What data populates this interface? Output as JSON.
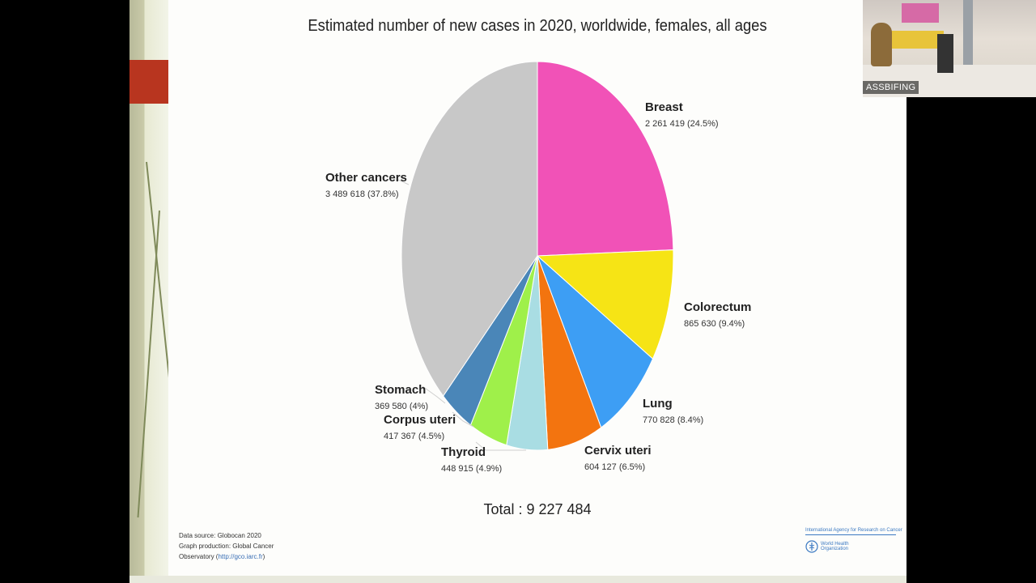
{
  "chart_data": {
    "type": "pie",
    "title": "Estimated number of new cases in 2020, worldwide, females, all ages",
    "total_label": "Total : 9 227 484",
    "slices": [
      {
        "name": "Breast",
        "value": 2261419,
        "value_label": "2 261 419 (24.5%)",
        "percent": 24.5,
        "color": "#f152b7"
      },
      {
        "name": "Colorectum",
        "value": 865630,
        "value_label": "865 630 (9.4%)",
        "percent": 9.4,
        "color": "#f6e415"
      },
      {
        "name": "Lung",
        "value": 770828,
        "value_label": "770 828 (8.4%)",
        "percent": 8.4,
        "color": "#3d9ef4"
      },
      {
        "name": "Cervix uteri",
        "value": 604127,
        "value_label": "604 127 (6.5%)",
        "percent": 6.5,
        "color": "#f3740f"
      },
      {
        "name": "Thyroid",
        "value": 448915,
        "value_label": "448 915 (4.9%)",
        "percent": 4.9,
        "color": "#a9dde3"
      },
      {
        "name": "Corpus uteri",
        "value": 417367,
        "value_label": "417 367 (4.5%)",
        "percent": 4.5,
        "color": "#9ff04a"
      },
      {
        "name": "Stomach",
        "value": 369580,
        "value_label": "369 580 (4%)",
        "percent": 4,
        "color": "#4a86b8"
      },
      {
        "name": "Other cancers",
        "value": 3489618,
        "value_label": "3 489 618 (37.8%)",
        "percent": 37.8,
        "color": "#c8c8c8"
      }
    ]
  },
  "source": {
    "line1": "Data source: Globocan 2020",
    "line2": "Graph production: Global Cancer",
    "line3_prefix": "Observatory (",
    "link": "http://gco.iarc.fr",
    "line3_suffix": ")"
  },
  "logos": {
    "iarc": "International Agency for Research on Cancer",
    "who_line1": "World Health",
    "who_line2": "Organization"
  },
  "video": {
    "participant": "ASSBIFING"
  }
}
